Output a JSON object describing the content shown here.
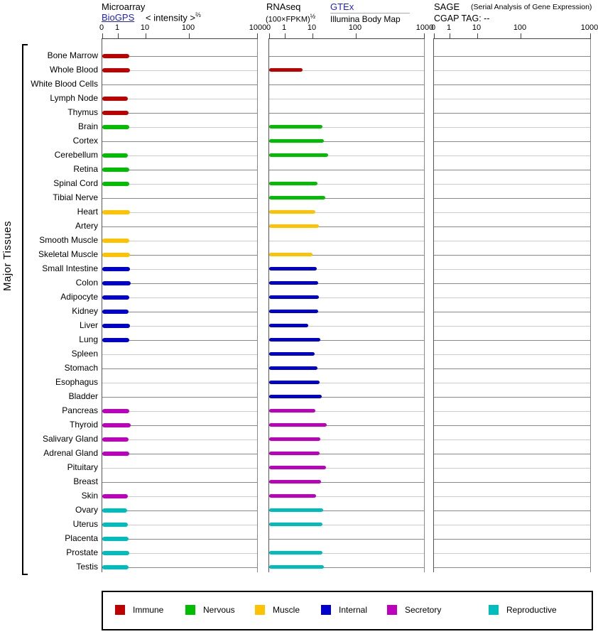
{
  "header": {
    "microarray": {
      "title": "Microarray",
      "link_label": "BioGPS",
      "scale_label": "< intensity >",
      "scale_exponent": "⅔"
    },
    "rnaseq": {
      "title": "RNAseq",
      "scale_label": "(100×FPKM)",
      "scale_exponent": "½",
      "link_label": "GTEx",
      "source_label": "Illumina Body Map"
    },
    "sage": {
      "title": "SAGE",
      "subtitle": "(Serial Analysis of Gene Expression)",
      "tag_label": "CGAP TAG:",
      "tag_value": "--"
    }
  },
  "side_label": "Major Tissues",
  "legend": [
    {
      "group": "immune",
      "label": "Immune",
      "color": "#bd0000"
    },
    {
      "group": "nervous",
      "label": "Nervous",
      "color": "#00bd00"
    },
    {
      "group": "muscle",
      "label": "Muscle",
      "color": "#ffc200"
    },
    {
      "group": "internal",
      "label": "Internal",
      "color": "#0000cc"
    },
    {
      "group": "secretory",
      "label": "Secretory",
      "color": "#bd00bd"
    },
    {
      "group": "reproductive",
      "label": "Reproductive",
      "color": "#00bdbd"
    }
  ],
  "chart_data": {
    "type": "bar",
    "orientation": "horizontal",
    "x_scale": "0 then log decades 1-10-100-1000",
    "axis_tick_labels": [
      "0",
      "1",
      "10",
      "100",
      "1000"
    ],
    "axis_tick_values": [
      0,
      1,
      10,
      100,
      1000
    ],
    "panels": [
      {
        "id": "microarray",
        "series_key": "microarray",
        "title": "Microarray BioGPS intensity^(2/3)"
      },
      {
        "id": "rnaseq",
        "series_key": "rnaseq",
        "title": "RNAseq (100×FPKM)^(1/2) GTEx / Illumina Body Map"
      },
      {
        "id": "sage",
        "series_key": "sage",
        "title": "SAGE CGAP TAG: -- (no data)"
      }
    ],
    "tissues": [
      {
        "label": "Bone Marrow",
        "group": "immune",
        "microarray": 2.6,
        "rnaseq": null,
        "sage": null
      },
      {
        "label": "Whole Blood",
        "group": "immune",
        "microarray": 2.7,
        "rnaseq": 4.4,
        "sage": null
      },
      {
        "label": "White Blood Cells",
        "group": "immune",
        "microarray": null,
        "rnaseq": null,
        "sage": null
      },
      {
        "label": "Lymph Node",
        "group": "immune",
        "microarray": 2.3,
        "rnaseq": null,
        "sage": null
      },
      {
        "label": "Thymus",
        "group": "immune",
        "microarray": 2.4,
        "rnaseq": null,
        "sage": null
      },
      {
        "label": "Brain",
        "group": "nervous",
        "microarray": 2.6,
        "rnaseq": 17.0,
        "sage": null
      },
      {
        "label": "Cortex",
        "group": "nervous",
        "microarray": null,
        "rnaseq": 18.3,
        "sage": null
      },
      {
        "label": "Cerebellum",
        "group": "nervous",
        "microarray": 2.3,
        "rnaseq": 23.1,
        "sage": null
      },
      {
        "label": "Retina",
        "group": "nervous",
        "microarray": 2.6,
        "rnaseq": null,
        "sage": null
      },
      {
        "label": "Spinal Cord",
        "group": "nervous",
        "microarray": 2.6,
        "rnaseq": 13.0,
        "sage": null
      },
      {
        "label": "Tibial Nerve",
        "group": "nervous",
        "microarray": null,
        "rnaseq": 19.8,
        "sage": null
      },
      {
        "label": "Heart",
        "group": "muscle",
        "microarray": 2.7,
        "rnaseq": 11.6,
        "sage": null
      },
      {
        "label": "Artery",
        "group": "muscle",
        "microarray": null,
        "rnaseq": 14.0,
        "sage": null
      },
      {
        "label": "Smooth Muscle",
        "group": "muscle",
        "microarray": 2.6,
        "rnaseq": null,
        "sage": null
      },
      {
        "label": "Skeletal Muscle",
        "group": "muscle",
        "microarray": 2.7,
        "rnaseq": 10.0,
        "sage": null
      },
      {
        "label": "Small Intestine",
        "group": "internal",
        "microarray": 2.7,
        "rnaseq": 12.5,
        "sage": null
      },
      {
        "label": "Colon",
        "group": "internal",
        "microarray": 2.9,
        "rnaseq": 13.5,
        "sage": null
      },
      {
        "label": "Adipocyte",
        "group": "internal",
        "microarray": 2.6,
        "rnaseq": 14.0,
        "sage": null
      },
      {
        "label": "Kidney",
        "group": "internal",
        "microarray": 2.4,
        "rnaseq": 13.5,
        "sage": null
      },
      {
        "label": "Liver",
        "group": "internal",
        "microarray": 2.7,
        "rnaseq": 7.0,
        "sage": null
      },
      {
        "label": "Lung",
        "group": "internal",
        "microarray": 2.6,
        "rnaseq": 15.1,
        "sage": null
      },
      {
        "label": "Spleen",
        "group": "internal",
        "microarray": null,
        "rnaseq": 11.2,
        "sage": null
      },
      {
        "label": "Stomach",
        "group": "internal",
        "microarray": null,
        "rnaseq": 13.0,
        "sage": null
      },
      {
        "label": "Esophagus",
        "group": "internal",
        "microarray": null,
        "rnaseq": 14.6,
        "sage": null
      },
      {
        "label": "Bladder",
        "group": "internal",
        "microarray": null,
        "rnaseq": 16.4,
        "sage": null
      },
      {
        "label": "Pancreas",
        "group": "secretory",
        "microarray": 2.6,
        "rnaseq": 11.6,
        "sage": null
      },
      {
        "label": "Thyroid",
        "group": "secretory",
        "microarray": 2.9,
        "rnaseq": 21.4,
        "sage": null
      },
      {
        "label": "Salivary Gland",
        "group": "secretory",
        "microarray": 2.4,
        "rnaseq": 15.1,
        "sage": null
      },
      {
        "label": "Adrenal Gland",
        "group": "secretory",
        "microarray": 2.6,
        "rnaseq": 14.6,
        "sage": null
      },
      {
        "label": "Pituitary",
        "group": "secretory",
        "microarray": null,
        "rnaseq": 20.6,
        "sage": null
      },
      {
        "label": "Breast",
        "group": "secretory",
        "microarray": null,
        "rnaseq": 15.7,
        "sage": null
      },
      {
        "label": "Skin",
        "group": "secretory",
        "microarray": 2.3,
        "rnaseq": 12.1,
        "sage": null
      },
      {
        "label": "Ovary",
        "group": "reproductive",
        "microarray": 2.2,
        "rnaseq": 17.7,
        "sage": null
      },
      {
        "label": "Uterus",
        "group": "reproductive",
        "microarray": 2.3,
        "rnaseq": 17.0,
        "sage": null
      },
      {
        "label": "Placenta",
        "group": "reproductive",
        "microarray": 2.4,
        "rnaseq": null,
        "sage": null
      },
      {
        "label": "Prostate",
        "group": "reproductive",
        "microarray": 2.6,
        "rnaseq": 17.0,
        "sage": null
      },
      {
        "label": "Testis",
        "group": "reproductive",
        "microarray": 2.4,
        "rnaseq": 18.3,
        "sage": null
      }
    ]
  }
}
